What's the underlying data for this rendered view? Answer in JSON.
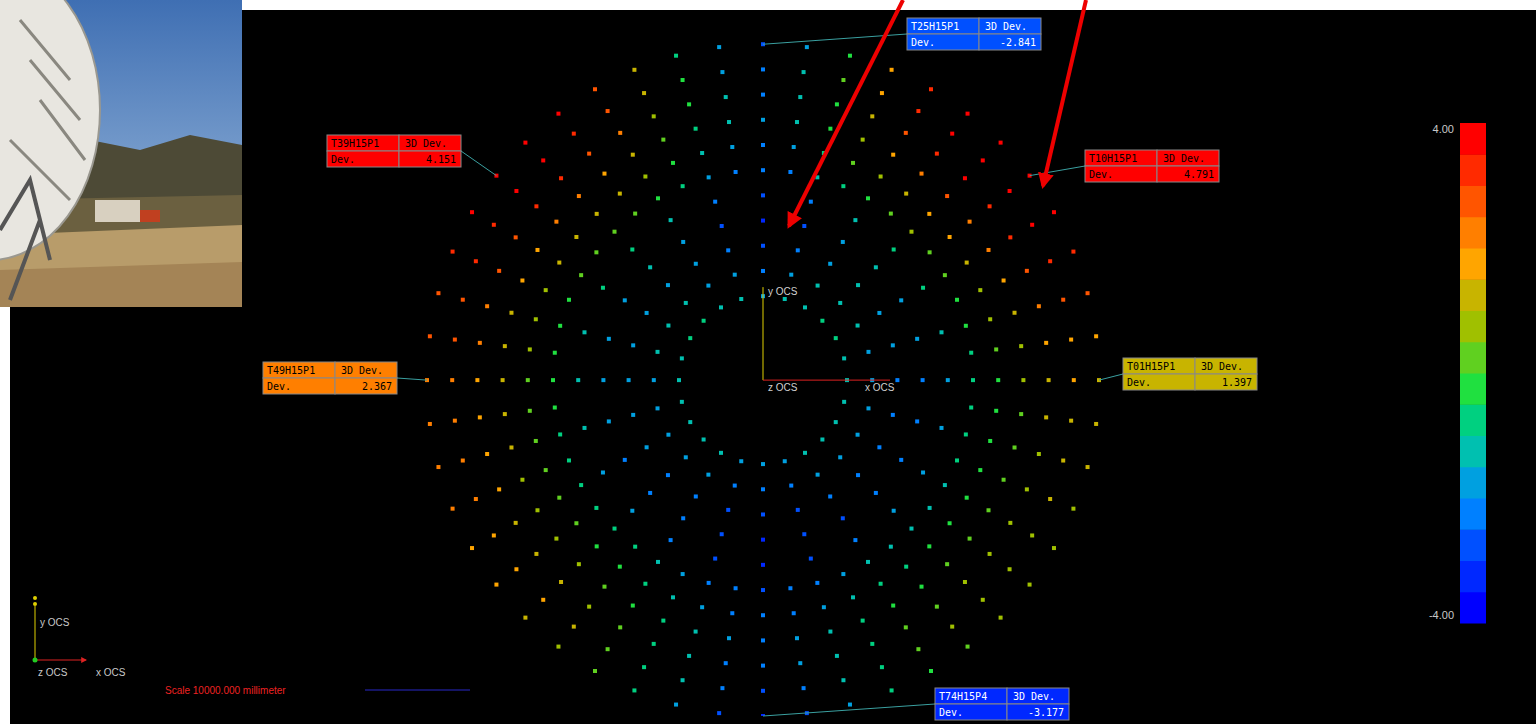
{
  "chart_data": {
    "type": "scatter",
    "xlim": [
      -70000,
      70000
    ],
    "ylim": [
      -32000,
      34500
    ],
    "tick_labels": false,
    "rings": [
      {
        "radius": 8000,
        "deviations": [
          -1.3,
          -1.1,
          -1.0,
          -0.9,
          -1.1,
          -1.4,
          -1.7,
          -1.5,
          -1.1,
          -1.0,
          -1.0,
          -1.1,
          -1.2,
          -1.2,
          -1.2,
          -1.3,
          -1.4,
          -1.6,
          -1.7,
          -1.6,
          -1.4,
          -1.3,
          -1.3,
          -1.3
        ]
      },
      {
        "radius": 10400,
        "deviations": [
          -1.7,
          -1.6,
          -1.3,
          -1.2,
          -1.5,
          -2.0,
          -2.4,
          -2.0,
          -1.6,
          -1.3,
          -1.4,
          -1.5,
          -1.6,
          -1.6,
          -1.7,
          -1.7,
          -1.9,
          -2.2,
          -2.4,
          -2.2,
          -2.0,
          -1.8,
          -1.8,
          -1.8
        ]
      },
      {
        "radius": 12800,
        "deviations": [
          -2.1,
          -1.9,
          -1.6,
          -1.4,
          -1.7,
          -2.4,
          -3.0,
          -2.5,
          -1.9,
          -1.6,
          -1.7,
          -1.8,
          -1.9,
          -2.0,
          -2.0,
          -2.1,
          -2.4,
          -2.8,
          -3.0,
          -2.8,
          -2.4,
          -2.3,
          -2.2,
          -2.2
        ]
      },
      {
        "radius": 15200,
        "deviations": [
          -2.2,
          -1.9,
          -1.6,
          -1.4,
          -1.7,
          -2.6,
          -3.3,
          -2.7,
          -1.9,
          -1.5,
          -1.7,
          -1.8,
          -2.0,
          -2.0,
          -2.1,
          -2.2,
          -2.5,
          -3.0,
          -3.3,
          -3.0,
          -2.6,
          -2.4,
          -2.4,
          -2.3
        ]
      },
      {
        "radius": 17600,
        "deviations": [
          -1.7,
          -1.3,
          -0.9,
          -0.7,
          -1.1,
          -2.2,
          -2.9,
          -2.3,
          -1.3,
          -0.9,
          -1.0,
          -1.2,
          -1.4,
          -1.5,
          -1.6,
          -1.7,
          -2.1,
          -2.7,
          -3.1,
          -2.6,
          -2.1,
          -1.9,
          -1.9,
          -1.8
        ]
      },
      {
        "radius": 20000,
        "deviations": [
          -0.8,
          -0.6,
          -0.4,
          -0.1,
          0.2,
          0.4,
          0.5,
          0.4,
          -0.1,
          -0.8,
          -1.5,
          -2.1,
          -2.5,
          -2.2,
          -1.6,
          -1.0,
          -0.4,
          0.0,
          0.3,
          0.2,
          0.0,
          -0.1,
          -0.2,
          -0.4,
          -0.5,
          -0.5,
          -0.6,
          -0.6,
          -0.7,
          -0.8,
          -0.8,
          -1.0,
          -1.4,
          -1.8,
          -2.2,
          -2.5,
          -2.7,
          -2.5,
          -2.1,
          -1.8,
          -1.4,
          -1.2,
          -1.1,
          -1.1,
          -1.1,
          -1.0,
          -1.0,
          -0.9
        ]
      },
      {
        "radius": 22400,
        "deviations": [
          -0.1,
          0.2,
          0.5,
          0.9,
          1.2,
          1.5,
          1.6,
          1.4,
          0.9,
          0.0,
          -0.9,
          -1.7,
          -2.2,
          -1.8,
          -1.1,
          -0.3,
          0.5,
          1.0,
          1.3,
          1.2,
          1.0,
          0.8,
          0.7,
          0.5,
          0.4,
          0.4,
          0.3,
          0.2,
          0.1,
          0.0,
          -0.1,
          -0.4,
          -0.8,
          -1.3,
          -1.8,
          -2.2,
          -2.4,
          -2.2,
          -1.7,
          -1.3,
          -0.9,
          -0.6,
          -0.5,
          -0.4,
          -0.4,
          -0.4,
          -0.3,
          -0.2
        ]
      },
      {
        "radius": 24800,
        "deviations": [
          0.5,
          0.8,
          1.3,
          1.7,
          2.1,
          2.4,
          2.6,
          2.3,
          1.7,
          0.7,
          -0.4,
          -1.4,
          -2.0,
          -1.5,
          -0.7,
          0.4,
          1.3,
          1.9,
          2.2,
          2.1,
          1.9,
          1.6,
          1.4,
          1.3,
          1.1,
          1.1,
          1.0,
          0.9,
          0.8,
          0.7,
          0.5,
          0.2,
          -0.2,
          -0.8,
          -1.4,
          -2.0,
          -2.2,
          -1.9,
          -1.4,
          -0.8,
          -0.4,
          -0.1,
          0.1,
          0.2,
          0.2,
          0.2,
          0.3,
          0.4
        ]
      },
      {
        "radius": 27200,
        "deviations": [
          1.1,
          1.5,
          2.0,
          2.5,
          3.1,
          3.4,
          3.7,
          3.4,
          2.5,
          1.3,
          -0.1,
          -1.3,
          -2.1,
          -1.5,
          -0.4,
          0.9,
          2.0,
          2.8,
          3.2,
          3.1,
          2.8,
          2.5,
          2.2,
          2.0,
          1.8,
          1.8,
          1.6,
          1.6,
          1.4,
          1.3,
          1.1,
          0.7,
          0.1,
          -0.6,
          -1.4,
          -2.1,
          -2.3,
          -2.0,
          -1.3,
          -0.6,
          0.0,
          0.4,
          0.6,
          0.7,
          0.7,
          0.7,
          0.8,
          1.0
        ]
      },
      {
        "radius": 29600,
        "deviations": [
          1.5,
          1.9,
          2.5,
          3.2,
          3.8,
          4.3,
          4.5,
          4.2,
          3.2,
          1.6,
          0.0,
          -1.4,
          -2.4,
          -1.6,
          -0.3,
          1.2,
          2.5,
          3.4,
          3.9,
          3.8,
          3.4,
          3.1,
          2.8,
          2.5,
          2.3,
          2.3,
          2.1,
          2.0,
          1.8,
          1.6,
          1.5,
          1.0,
          0.3,
          -0.6,
          -1.5,
          -2.3,
          -2.7,
          -2.2,
          -1.4,
          -0.6,
          0.1,
          0.6,
          0.8,
          0.9,
          0.9,
          1.0,
          1.1,
          1.3
        ]
      },
      {
        "radius": 32000,
        "deviations": [
          1.397,
          1.9,
          2.6,
          3.3,
          4.0,
          4.791,
          4.6,
          4.4,
          3.3,
          1.6,
          -0.2,
          -1.8,
          -2.841,
          -2.0,
          -0.6,
          1.1,
          2.6,
          3.6,
          4.1,
          4.151,
          3.6,
          3.2,
          2.9,
          2.6,
          2.367,
          2.3,
          2.1,
          2.0,
          1.8,
          1.6,
          1.4,
          0.9,
          0.1,
          -0.9,
          -1.9,
          -2.8,
          -3.177,
          -2.7,
          -1.8,
          -0.9,
          -0.1,
          0.4,
          0.7,
          0.8,
          0.8,
          0.9,
          1.0,
          1.2
        ]
      }
    ],
    "colorbar": {
      "range": [
        -4,
        4
      ],
      "ticks": [
        {
          "value": 4,
          "label": "4.00"
        },
        {
          "value": -4,
          "label": "-4.00"
        }
      ]
    },
    "callouts": [
      {
        "name": "T25H15P1",
        "header": "3D Dev.",
        "row_label": "Dev.",
        "value": -2.841
      },
      {
        "name": "T39H15P1",
        "header": "3D Dev.",
        "row_label": "Dev.",
        "value": 4.151
      },
      {
        "name": "T10H15P1",
        "header": "3D Dev.",
        "row_label": "Dev.",
        "value": 4.791
      },
      {
        "name": "T49H15P1",
        "header": "3D Dev.",
        "row_label": "Dev.",
        "value": 2.367
      },
      {
        "name": "T01H15P1",
        "header": "3D Dev.",
        "row_label": "Dev.",
        "value": 1.397
      },
      {
        "name": "T74H15P4",
        "header": "3D Dev.",
        "row_label": "Dev.",
        "value": -3.177
      }
    ],
    "origin_axes": {
      "x": "x OCS",
      "y": "y OCS",
      "z": "z OCS"
    },
    "corner_axes": {
      "x": "x OCS",
      "y": "y OCS",
      "z": "z OCS"
    },
    "scale_bar": {
      "label": "Scale 10000.000 millimeter",
      "length": 10000
    }
  }
}
